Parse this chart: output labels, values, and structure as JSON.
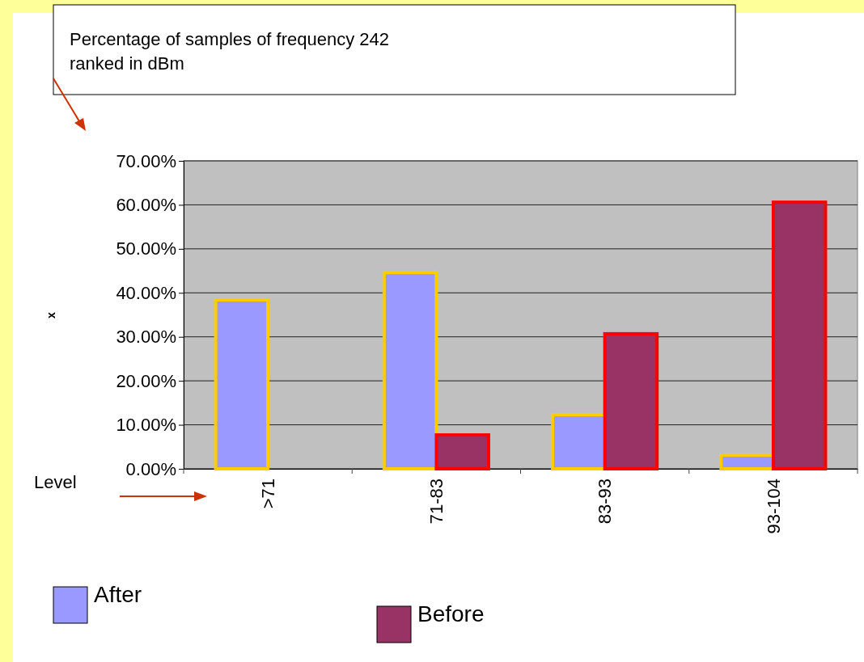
{
  "chart_data": {
    "type": "bar",
    "annotations": [
      "Percentage of samples of frequency 242\nranked in dBm",
      "x"
    ],
    "xlabel": "Level",
    "categories": [
      ">71",
      "71-83",
      "83-93",
      "93-104"
    ],
    "series": [
      {
        "name": "After",
        "color": "#9999ff",
        "values": [
          38.4,
          44.6,
          12.3,
          3.1
        ]
      },
      {
        "name": "Before",
        "color": "#993366",
        "values": [
          null,
          7.7,
          30.7,
          60.6
        ]
      }
    ],
    "ylim": [
      0,
      70
    ],
    "yticks": [
      {
        "value": 0,
        "label": "0.00%"
      },
      {
        "value": 10,
        "label": "10.00%"
      },
      {
        "value": 20,
        "label": "20.00%"
      },
      {
        "value": 30,
        "label": "30.00%"
      },
      {
        "value": 40,
        "label": "40.00%"
      },
      {
        "value": 50,
        "label": "50.00%"
      },
      {
        "value": 60,
        "label": "60.00%"
      },
      {
        "value": 70,
        "label": "70.00%"
      }
    ],
    "grid": "y",
    "legend": "bottom left"
  }
}
